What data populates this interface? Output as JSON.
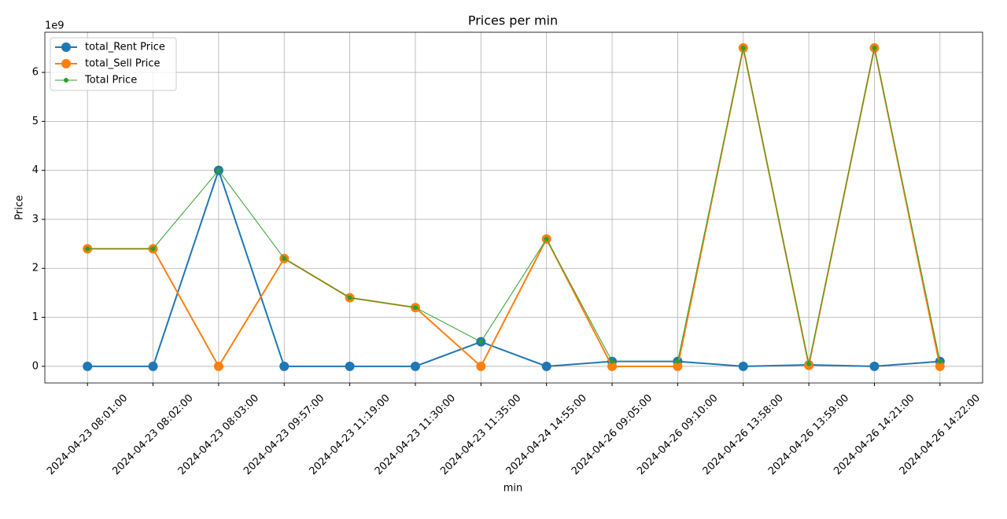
{
  "chart_data": {
    "type": "line",
    "title": "Prices per min",
    "x_label": "min",
    "y_label": "Price",
    "y_offset_label": "1e9",
    "categories": [
      "2024-04-23 08:01:00",
      "2024-04-23 08:02:00",
      "2024-04-23 08:03:00",
      "2024-04-23 09:57:00",
      "2024-04-23 11:19:00",
      "2024-04-23 11:30:00",
      "2024-04-23 11:35:00",
      "2024-04-24 14:55:00",
      "2024-04-26 09:05:00",
      "2024-04-26 09:10:00",
      "2024-04-26 13:58:00",
      "2024-04-26 13:59:00",
      "2024-04-26 14:21:00",
      "2024-04-26 14:22:00"
    ],
    "series": [
      {
        "name": "total_Rent Price",
        "color": "#1f77b4",
        "line_width": 2,
        "marker_size": 12,
        "values": [
          0,
          0,
          4.0,
          0,
          0,
          0,
          0.5,
          0,
          0.1,
          0.1,
          0,
          0.03,
          0,
          0.1
        ]
      },
      {
        "name": "total_Sell Price",
        "color": "#ff7f0e",
        "line_width": 2,
        "marker_size": 12,
        "values": [
          2.4,
          2.4,
          0,
          2.2,
          1.4,
          1.2,
          0,
          2.6,
          0,
          0,
          6.5,
          0.02,
          6.5,
          0
        ]
      },
      {
        "name": "Total Price",
        "color": "#2ca02c",
        "line_width": 1,
        "marker_size": 6,
        "values": [
          2.4,
          2.4,
          4.0,
          2.2,
          1.4,
          1.2,
          0.5,
          2.6,
          0.1,
          0.1,
          6.5,
          0.05,
          6.5,
          0.1
        ]
      }
    ],
    "ylim": [
      -0.34,
      6.82
    ],
    "yticks": [
      0,
      1,
      2,
      3,
      4,
      5,
      6
    ],
    "grid": true,
    "legend": "upper-left"
  }
}
